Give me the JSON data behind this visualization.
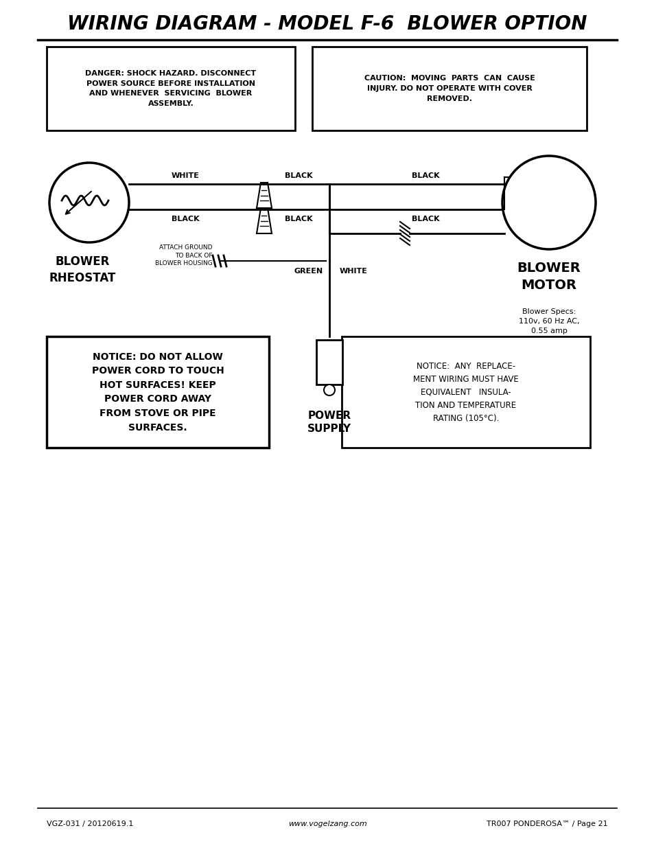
{
  "title": "WIRING DIAGRAM - MODEL F-6  BLOWER OPTION",
  "title_fontsize": 20,
  "bg_color": "#ffffff",
  "text_color": "#1a1a1a",
  "footer_left": "VGZ-031 / 20120619.1",
  "footer_center": "www.vogelzang.com",
  "footer_right": "TR007 PONDEROSA™ / Page 21",
  "danger_text": "DANGER: SHOCK HAZARD. DISCONNECT\nPOWER SOURCE BEFORE INSTALLATION\nAND WHENEVER  SERVICING  BLOWER\nASSEMBLY.",
  "caution_text": "CAUTION:  MOVING  PARTS  CAN  CAUSE\nINJURY. DO NOT OPERATE WITH COVER\nREMOVED.",
  "notice_left": "NOTICE: DO NOT ALLOW\nPOWER CORD TO TOUCH\nHOT SURFACES! KEEP\nPOWER CORD AWAY\nFROM STOVE OR PIPE\nSURFACES.",
  "notice_right": "NOTICE:  ANY  REPLACE-\nMENT WIRING MUST HAVE\nEQUIVALENT   INSULA-\nTION AND TEMPERATURE\nRATING (105°C).",
  "blower_rheostat_label": "BLOWER\nRHEOSTAT",
  "blower_motor_label": "BLOWER\nMOTOR",
  "blower_specs": "Blower Specs:\n110v, 60 Hz AC,\n0.55 amp",
  "power_supply_label": "POWER\nSUPPLY",
  "ground_label": "ATTACH GROUND\nTO BACK OF\nBLOWER HOUSING",
  "wire_white_top": "WHITE",
  "wire_black_top_conn": "BLACK",
  "wire_black_top_right": "BLACK",
  "wire_black_bottom_conn": "BLACK",
  "wire_black_bottom_left": "BLACK",
  "wire_black_bottom_right": "BLACK",
  "wire_green": "GREEN",
  "wire_white_bottom": "WHITE"
}
